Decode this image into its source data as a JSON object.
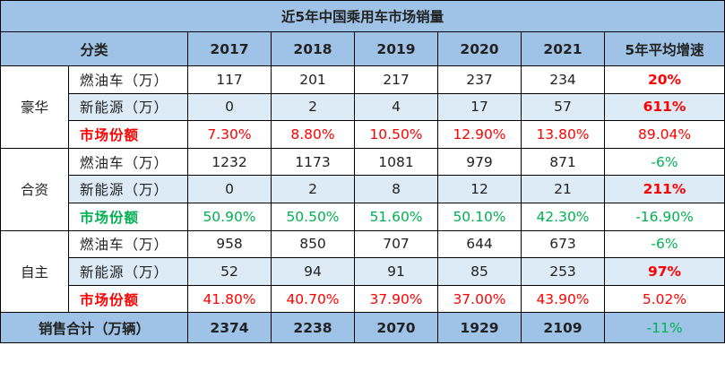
{
  "colors": {
    "header_bg": "#9fc3e7",
    "alt_bg": "#ddebf7",
    "red": "#ff0000",
    "green": "#00b050"
  },
  "title": "近5年中国乘用车市场销量",
  "header": {
    "category": "分类",
    "years": [
      "2017",
      "2018",
      "2019",
      "2020",
      "2021"
    ],
    "growth": "5年平均增速"
  },
  "groups": [
    {
      "name": "豪华",
      "share_color": "red",
      "rows": [
        {
          "label": "燃油车（万）",
          "values": [
            "117",
            "201",
            "217",
            "237",
            "234"
          ],
          "growth": "20%",
          "growth_color": "red"
        },
        {
          "label": "新能源（万）",
          "values": [
            "0",
            "2",
            "4",
            "17",
            "57"
          ],
          "growth": "611%",
          "growth_color": "red"
        },
        {
          "label": "市场份额",
          "values": [
            "7.30%",
            "8.80%",
            "10.50%",
            "12.90%",
            "13.80%"
          ],
          "growth": "89.04%",
          "growth_color": "red"
        }
      ]
    },
    {
      "name": "合资",
      "share_color": "green",
      "rows": [
        {
          "label": "燃油车（万）",
          "values": [
            "1232",
            "1173",
            "1081",
            "979",
            "871"
          ],
          "growth": "-6%",
          "growth_color": "green"
        },
        {
          "label": "新能源（万）",
          "values": [
            "0",
            "2",
            "8",
            "12",
            "21"
          ],
          "growth": "211%",
          "growth_color": "red"
        },
        {
          "label": "市场份额",
          "values": [
            "50.90%",
            "50.50%",
            "51.60%",
            "50.10%",
            "42.30%"
          ],
          "growth": "-16.90%",
          "growth_color": "green"
        }
      ]
    },
    {
      "name": "自主",
      "share_color": "red",
      "rows": [
        {
          "label": "燃油车（万）",
          "values": [
            "958",
            "850",
            "707",
            "644",
            "673"
          ],
          "growth": "-6%",
          "growth_color": "green"
        },
        {
          "label": "新能源（万）",
          "values": [
            "52",
            "94",
            "91",
            "85",
            "253"
          ],
          "growth": "97%",
          "growth_color": "red"
        },
        {
          "label": "市场份额",
          "values": [
            "41.80%",
            "40.70%",
            "37.90%",
            "37.00%",
            "43.90%"
          ],
          "growth": "5.02%",
          "growth_color": "red"
        }
      ]
    }
  ],
  "total": {
    "label": "销售合计（万辆）",
    "values": [
      "2374",
      "2238",
      "2070",
      "1929",
      "2109"
    ],
    "growth": "-11%",
    "growth_color": "green"
  }
}
